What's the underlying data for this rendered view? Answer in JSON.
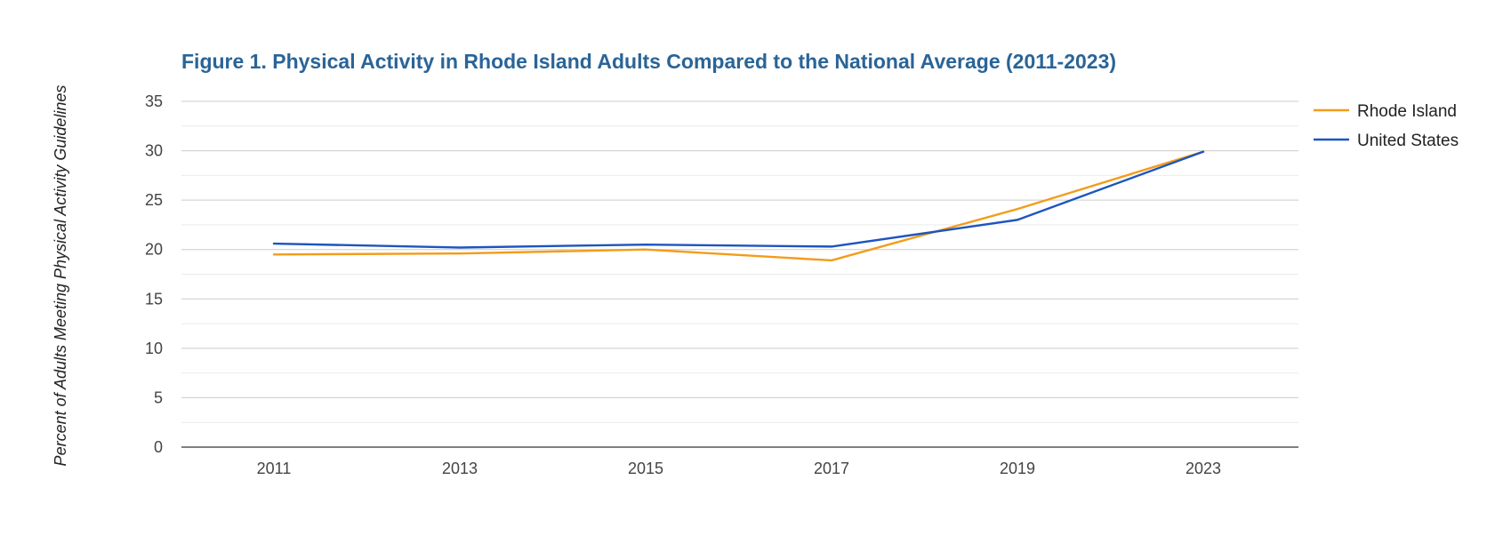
{
  "chart_data": {
    "type": "line",
    "title": "Figure 1. Physical Activity in Rhode Island Adults Compared to the National Average (2011-2023)",
    "xlabel": "",
    "ylabel": "Percent of Adults Meeting Physical Activity Guidelines",
    "categories": [
      "2011",
      "2013",
      "2015",
      "2017",
      "2019",
      "2023"
    ],
    "ylim": [
      0,
      35
    ],
    "yticks": [
      0,
      5,
      10,
      15,
      20,
      25,
      30,
      35
    ],
    "grid": true,
    "legend_position": "right",
    "series": [
      {
        "name": "Rhode Island",
        "color": "#f39c1a",
        "values": [
          19.5,
          19.6,
          20.0,
          18.9,
          24.1,
          29.9
        ]
      },
      {
        "name": "United States",
        "color": "#1c55c0",
        "values": [
          20.6,
          20.2,
          20.5,
          20.3,
          23.0,
          29.9
        ]
      }
    ]
  },
  "colors": {
    "title": "#2a6497",
    "gridline": "#cccccc",
    "minor_gridline": "#ebebeb",
    "baseline": "#333333"
  }
}
